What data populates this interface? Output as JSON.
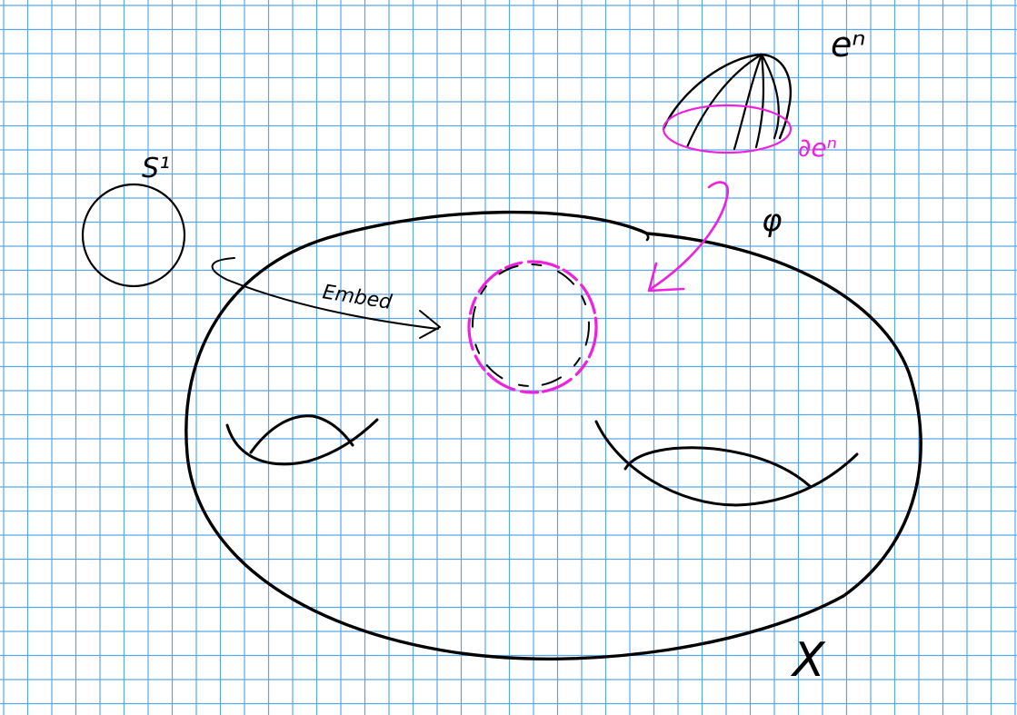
{
  "labels": {
    "circle": "S¹",
    "embed": "Embed",
    "cell": "eⁿ",
    "boundary": "∂eⁿ",
    "map": "φ",
    "space": "X"
  },
  "colors": {
    "paper": "#ffffff",
    "grid": "#5aa6e6",
    "ink": "#000000",
    "highlight": "#ee22dd"
  }
}
